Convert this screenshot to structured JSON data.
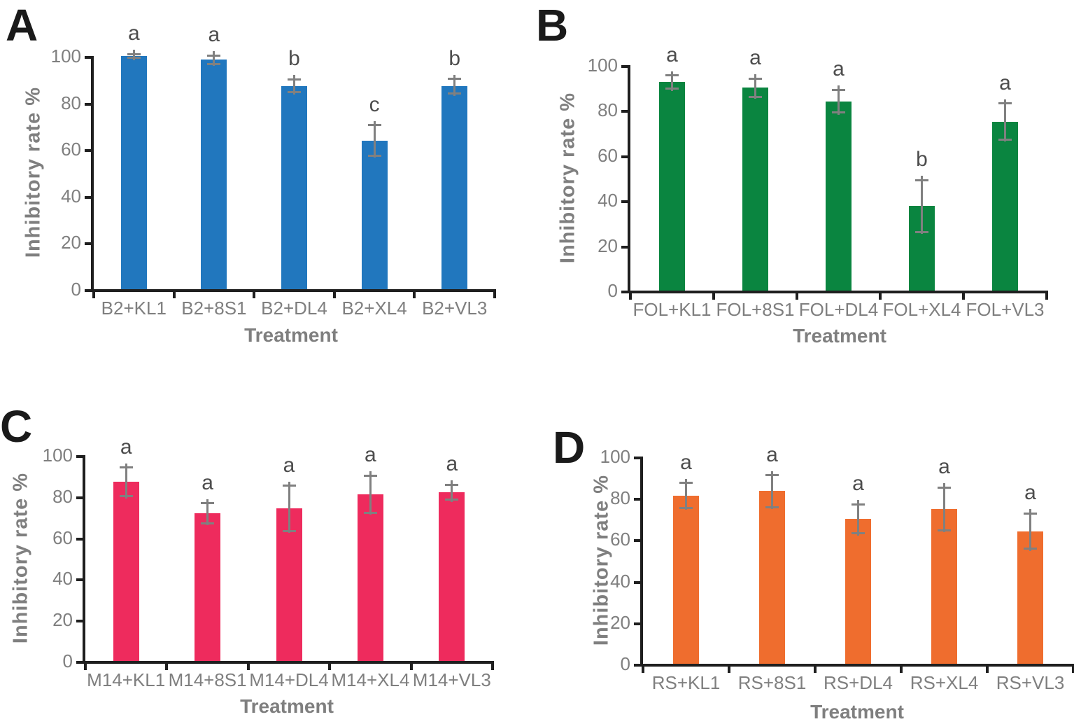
{
  "colors": {
    "background": "#ffffff",
    "axis": "#1f1f1f",
    "tick_text": "#7f7f7f",
    "axis_title_text": "#7f7f7f",
    "error_bar": "#808080",
    "sig_letter": "#4d4d4d",
    "panel_letter": "#1a1a1a",
    "bar_blue": "#2177BE",
    "bar_green": "#0A8540",
    "bar_pink": "#EE2B5D",
    "bar_orange": "#EF6D2E"
  },
  "chart_data": [
    {
      "panel_label": "A",
      "type": "bar",
      "categories": [
        "B2+KL1",
        "B2+8S1",
        "B2+DL4",
        "B2+XL4",
        "B2+VL3"
      ],
      "values": [
        100,
        98.5,
        87.2,
        63.8,
        87
      ],
      "errors": [
        0.8,
        1.8,
        2.8,
        6.5,
        3.2
      ],
      "sig_letters": [
        "a",
        "a",
        "b",
        "c",
        "b"
      ],
      "bar_color": "#2177BE",
      "xlabel": "Treatment",
      "ylabel": "Inhibitory rate %",
      "ylim": [
        0,
        100
      ],
      "yticks": [
        0,
        20,
        40,
        60,
        80,
        100
      ],
      "grid": false,
      "legend": null
    },
    {
      "panel_label": "B",
      "type": "bar",
      "categories": [
        "FOL+KL1",
        "FOL+8S1",
        "FOL+DL4",
        "FOL+XL4",
        "FOL+VL3"
      ],
      "values": [
        92.5,
        90,
        84,
        37.5,
        75
      ],
      "errors": [
        3,
        4,
        5,
        11.5,
        8
      ],
      "sig_letters": [
        "a",
        "a",
        "a",
        "b",
        "a"
      ],
      "bar_color": "#0A8540",
      "xlabel": "Treatment",
      "ylabel": "Inhibitory rate %",
      "ylim": [
        0,
        100
      ],
      "yticks": [
        0,
        20,
        40,
        60,
        80,
        100
      ],
      "grid": false,
      "legend": null
    },
    {
      "panel_label": "C",
      "type": "bar",
      "categories": [
        "M14+KL1",
        "M14+8S1",
        "M14+DL4",
        "M14+XL4",
        "M14+VL3"
      ],
      "values": [
        87,
        71.8,
        74.2,
        81,
        82
      ],
      "errors": [
        7,
        4.8,
        11,
        9,
        3.6
      ],
      "sig_letters": [
        "a",
        "a",
        "a",
        "a",
        "a"
      ],
      "bar_color": "#EE2B5D",
      "xlabel": "Treatment",
      "ylabel": "Inhibitory rate %",
      "ylim": [
        0,
        100
      ],
      "yticks": [
        0,
        20,
        40,
        60,
        80,
        100
      ],
      "grid": false,
      "legend": null
    },
    {
      "panel_label": "D",
      "type": "bar",
      "categories": [
        "RS+KL1",
        "RS+8S1",
        "RS+DL4",
        "RS+XL4",
        "RS+VL3"
      ],
      "values": [
        81.2,
        83.3,
        70,
        74.8,
        64
      ],
      "errors": [
        6,
        7.7,
        7,
        10.3,
        8.5
      ],
      "sig_letters": [
        "a",
        "a",
        "a",
        "a",
        "a"
      ],
      "bar_color": "#EF6D2E",
      "xlabel": "Treatment",
      "ylabel": "Inhibitory rate %",
      "ylim": [
        0,
        100
      ],
      "yticks": [
        0,
        20,
        40,
        60,
        80,
        100
      ],
      "grid": false,
      "legend": null
    }
  ]
}
